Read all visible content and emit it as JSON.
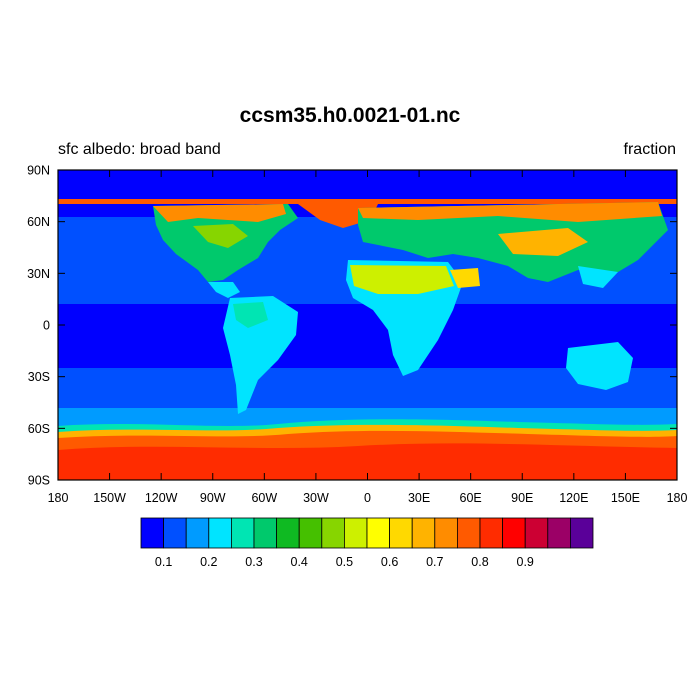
{
  "title": "ccsm35.h0.0021-01.nc",
  "subtitle_left": "sfc albedo: broad band",
  "subtitle_right": "fraction",
  "map": {
    "projection": "cylindrical-equidistant",
    "lon_range": [
      -180,
      180
    ],
    "lat_range": [
      -90,
      90
    ],
    "lon_ticks": [
      "180",
      "150W",
      "120W",
      "90W",
      "60W",
      "30W",
      "0",
      "30E",
      "60E",
      "90E",
      "120E",
      "150E",
      "180"
    ],
    "lat_ticks": [
      "90N",
      "60N",
      "30N",
      "0",
      "30S",
      "60S",
      "90S"
    ]
  },
  "colorbar": {
    "colors": [
      "#0000ff",
      "#0050ff",
      "#009bff",
      "#00e4ff",
      "#00e5b3",
      "#00c96c",
      "#0fba22",
      "#45c000",
      "#87d500",
      "#cdf000",
      "#ffff00",
      "#ffd900",
      "#ffb300",
      "#ff8c00",
      "#ff5a00",
      "#ff2c00",
      "#ff0000",
      "#cc0033",
      "#9b0066",
      "#5a0099"
    ],
    "labels": [
      "0.1",
      "0.2",
      "0.3",
      "0.4",
      "0.5",
      "0.6",
      "0.7",
      "0.8",
      "0.9"
    ]
  }
}
